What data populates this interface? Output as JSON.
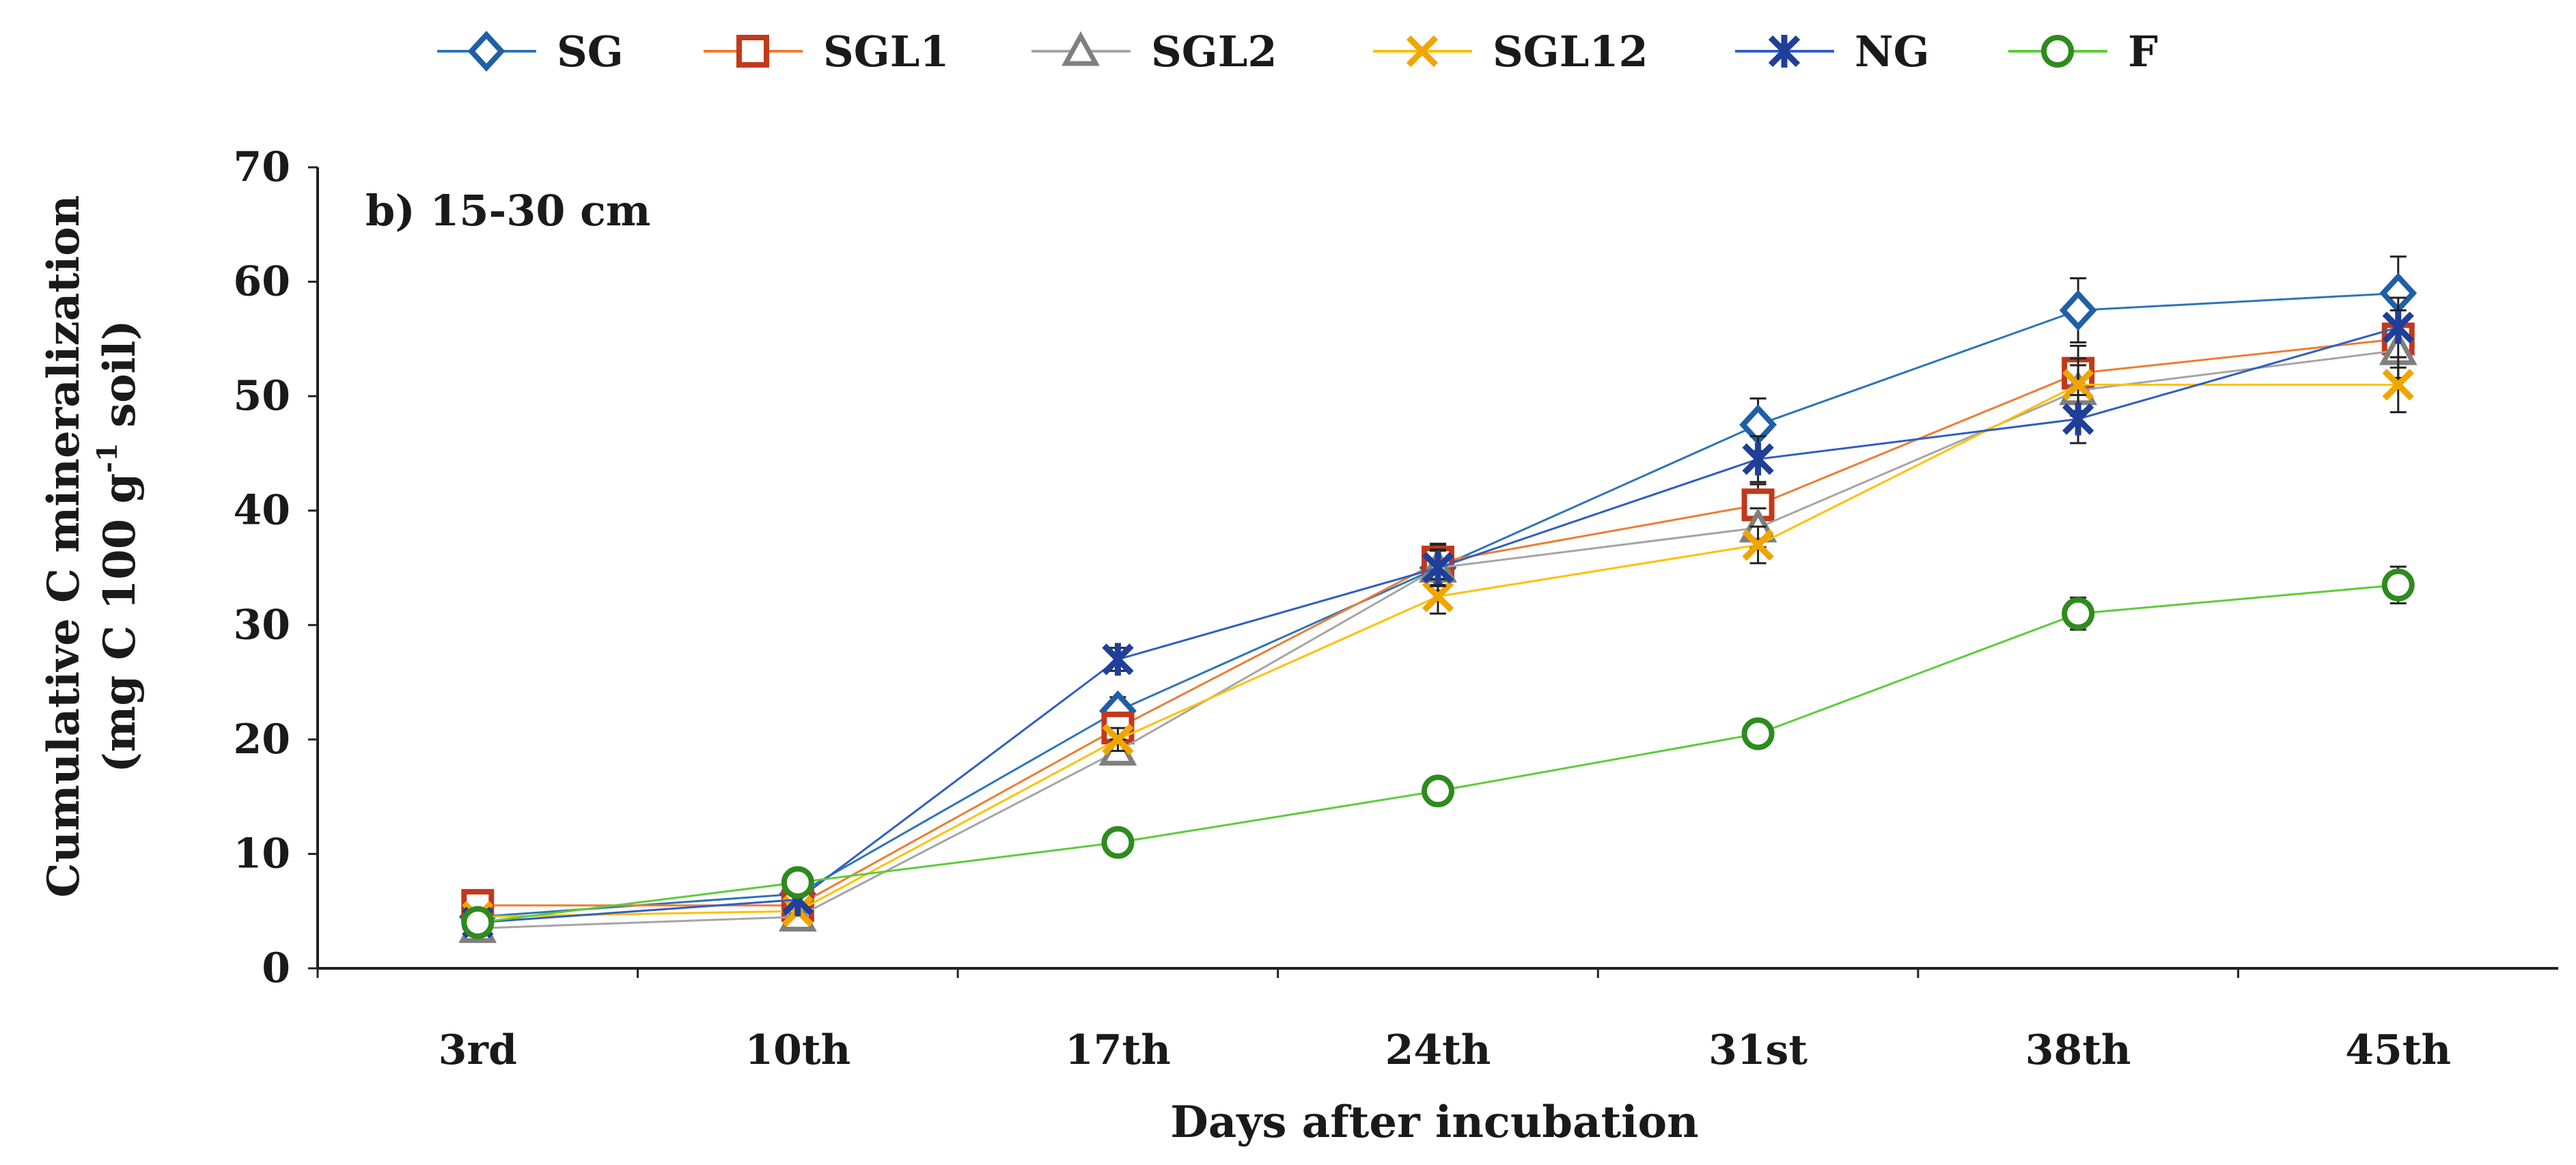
{
  "chart_data": {
    "type": "line",
    "panel_label": "b) 15-30 cm",
    "xlabel": "Days after incubation",
    "ylabel_line1": "Cumulative C mineralization",
    "ylabel_line2_prefix": "(mg C 100 g",
    "ylabel_line2_sup": "-1",
    "ylabel_line2_suffix": " soil)",
    "categories": [
      "3rd",
      "10th",
      "17th",
      "24th",
      "31st",
      "38th",
      "45th"
    ],
    "ylim": [
      0,
      70
    ],
    "yticks": [
      0,
      10,
      20,
      30,
      40,
      50,
      60,
      70
    ],
    "grid": false,
    "legend_position": "top",
    "series": [
      {
        "name": "SG",
        "color": "#2E75B6",
        "marker": "diamond",
        "marker_color": "#1F5FA8",
        "values": [
          4.5,
          6.5,
          22.5,
          35,
          47.5,
          57.5,
          59
        ],
        "errors": [
          0.4,
          0.6,
          1.2,
          2.0,
          2.3,
          2.8,
          3.2
        ]
      },
      {
        "name": "SGL1",
        "color": "#ED7D31",
        "marker": "square",
        "marker_color": "#C0391B",
        "values": [
          5.5,
          5.5,
          21,
          35.5,
          40.5,
          52,
          55
        ],
        "errors": [
          0.4,
          0.5,
          1.0,
          1.6,
          1.8,
          2.4,
          2.5
        ]
      },
      {
        "name": "SGL2",
        "color": "#A5A5A5",
        "marker": "triangle",
        "marker_color": "#7F7F7F",
        "values": [
          3.5,
          4.5,
          19,
          35,
          38.5,
          50.5,
          54
        ],
        "errors": [
          0.3,
          0.4,
          1.0,
          1.5,
          1.7,
          2.2,
          2.4
        ]
      },
      {
        "name": "SGL12",
        "color": "#FFC000",
        "marker": "x",
        "marker_color": "#F0A500",
        "values": [
          4.5,
          5,
          20,
          32.5,
          37,
          51,
          51
        ],
        "errors": [
          0.3,
          0.4,
          1.0,
          1.5,
          1.6,
          2.3,
          2.4
        ]
      },
      {
        "name": "NG",
        "color": "#2F5EC4",
        "marker": "asterisk",
        "marker_color": "#1F3F9A",
        "values": [
          4,
          6,
          27,
          35,
          44.5,
          48,
          56
        ],
        "errors": [
          0.3,
          0.5,
          1.0,
          1.6,
          2.0,
          2.1,
          2.6
        ]
      },
      {
        "name": "F",
        "color": "#5FCB3A",
        "marker": "circle",
        "marker_color": "#2E8B1E",
        "values": [
          4,
          7.5,
          11,
          15.5,
          20.5,
          31,
          33.5
        ],
        "errors": [
          0.3,
          0.4,
          0.6,
          0.8,
          1.0,
          1.4,
          1.6
        ]
      }
    ]
  }
}
